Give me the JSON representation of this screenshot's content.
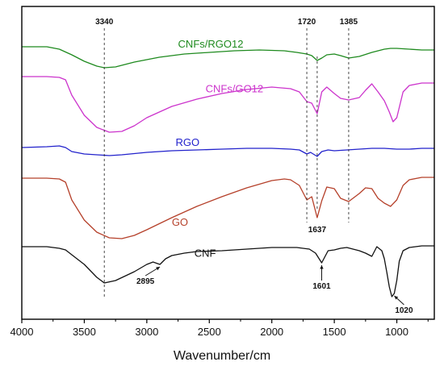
{
  "chart_data": {
    "type": "line",
    "xlabel": "Wavenumber/cm",
    "ylabel": "",
    "xlim": [
      4000,
      700
    ],
    "xticks": [
      "4000",
      "3500",
      "3000",
      "2500",
      "2000",
      "1500",
      "1000"
    ],
    "grid": false,
    "legend": "none",
    "series": [
      {
        "name": "CNFs/RGO12",
        "color": "#1e8a1e",
        "offset": 0,
        "x": [
          4000,
          3800,
          3700,
          3600,
          3500,
          3400,
          3340,
          3250,
          3100,
          2900,
          2700,
          2500,
          2300,
          2100,
          1900,
          1800,
          1720,
          1680,
          1637,
          1600,
          1560,
          1500,
          1450,
          1385,
          1300,
          1200,
          1100,
          1050,
          1000,
          900,
          800,
          700
        ],
        "y": [
          50,
          50,
          53,
          60,
          68,
          74,
          76,
          75,
          69,
          63,
          59,
          57,
          55,
          54,
          55,
          57,
          59,
          61,
          67,
          64,
          60,
          59,
          61,
          64,
          62,
          57,
          53,
          52,
          52,
          53,
          54,
          54
        ]
      },
      {
        "name": "CNFs/GO12",
        "color": "#cc33cc",
        "offset": 0,
        "x": [
          4000,
          3800,
          3700,
          3650,
          3600,
          3500,
          3400,
          3300,
          3200,
          3100,
          3000,
          2800,
          2600,
          2400,
          2200,
          2000,
          1850,
          1780,
          1720,
          1680,
          1637,
          1600,
          1560,
          1500,
          1450,
          1385,
          1300,
          1250,
          1200,
          1150,
          1100,
          1060,
          1030,
          1000,
          950,
          900,
          800,
          700
        ],
        "y": [
          87,
          87,
          88,
          91,
          110,
          135,
          150,
          156,
          155,
          148,
          138,
          124,
          115,
          108,
          103,
          100,
          102,
          106,
          118,
          120,
          133,
          106,
          100,
          108,
          114,
          116,
          113,
          104,
          96,
          106,
          117,
          131,
          143,
          138,
          106,
          98,
          95,
          95
        ]
      },
      {
        "name": "RGO",
        "color": "#2222cc",
        "offset": 0,
        "x": [
          4000,
          3800,
          3700,
          3650,
          3600,
          3500,
          3400,
          3300,
          3200,
          3000,
          2800,
          2600,
          2400,
          2200,
          2000,
          1850,
          1780,
          1720,
          1690,
          1637,
          1600,
          1550,
          1500,
          1400,
          1300,
          1200,
          1100,
          1000,
          900,
          800,
          700
        ],
        "y": [
          175,
          174,
          173,
          175,
          180,
          183,
          184,
          185,
          184,
          181,
          179,
          178,
          177,
          176,
          176,
          177,
          178,
          183,
          181,
          186,
          180,
          178,
          179,
          178,
          177,
          176,
          176,
          177,
          177,
          176,
          176
        ]
      },
      {
        "name": "GO",
        "color": "#b5402a",
        "offset": 0,
        "x": [
          4000,
          3800,
          3700,
          3650,
          3600,
          3500,
          3400,
          3300,
          3200,
          3100,
          3000,
          2800,
          2600,
          2400,
          2200,
          2000,
          1900,
          1850,
          1780,
          1720,
          1680,
          1637,
          1600,
          1560,
          1500,
          1450,
          1385,
          1300,
          1250,
          1200,
          1150,
          1100,
          1050,
          1000,
          950,
          900,
          800,
          700
        ],
        "y": [
          213,
          213,
          214,
          218,
          240,
          265,
          280,
          287,
          288,
          284,
          277,
          262,
          248,
          236,
          225,
          216,
          214,
          215,
          222,
          240,
          236,
          262,
          241,
          224,
          226,
          238,
          242,
          232,
          225,
          226,
          238,
          244,
          248,
          240,
          222,
          215,
          212,
          212
        ]
      },
      {
        "name": "CNF",
        "color": "#111111",
        "offset": 0,
        "x": [
          4000,
          3800,
          3700,
          3650,
          3600,
          3500,
          3400,
          3340,
          3250,
          3100,
          3000,
          2950,
          2895,
          2850,
          2800,
          2700,
          2600,
          2400,
          2200,
          2000,
          1800,
          1700,
          1650,
          1601,
          1550,
          1500,
          1450,
          1400,
          1350,
          1300,
          1250,
          1200,
          1160,
          1120,
          1100,
          1080,
          1060,
          1040,
          1020,
          1000,
          980,
          950,
          900,
          850,
          800,
          700
        ],
        "y": [
          298,
          298,
          300,
          302,
          308,
          320,
          336,
          343,
          340,
          329,
          320,
          317,
          320,
          313,
          309,
          306,
          304,
          303,
          301,
          299,
          299,
          301,
          306,
          318,
          303,
          302,
          300,
          299,
          301,
          303,
          306,
          310,
          298,
          303,
          313,
          330,
          348,
          360,
          356,
          340,
          316,
          303,
          299,
          298,
          297,
          297
        ]
      }
    ],
    "series_labels": [
      {
        "text": "CNFs/RGO12",
        "series": "CNFs/RGO12",
        "x": 2750,
        "color": "#1e8a1e"
      },
      {
        "text": "CNFs/GO12",
        "series": "CNFs/GO12",
        "x": 2530,
        "color": "#cc33cc"
      },
      {
        "text": "RGO",
        "series": "RGO",
        "x": 2770,
        "color": "#2222cc"
      },
      {
        "text": "GO",
        "series": "GO",
        "x": 2800,
        "color": "#b5402a"
      },
      {
        "text": "CNF",
        "series": "CNF",
        "x": 2620,
        "color": "#111111"
      }
    ],
    "reference_lines": [
      {
        "label": "3340",
        "x": 3340,
        "label_pos": "top"
      },
      {
        "label": "1720",
        "x": 1720,
        "label_pos": "top"
      },
      {
        "label": "1637",
        "x": 1637,
        "label_pos": "bottom"
      },
      {
        "label": "1385",
        "x": 1385,
        "label_pos": "top"
      }
    ],
    "peak_annotations": [
      {
        "label": "2895",
        "x": 2895,
        "series": "CNF"
      },
      {
        "label": "1601",
        "x": 1601,
        "series": "CNF"
      },
      {
        "label": "1020",
        "x": 1020,
        "series": "CNF"
      }
    ]
  }
}
